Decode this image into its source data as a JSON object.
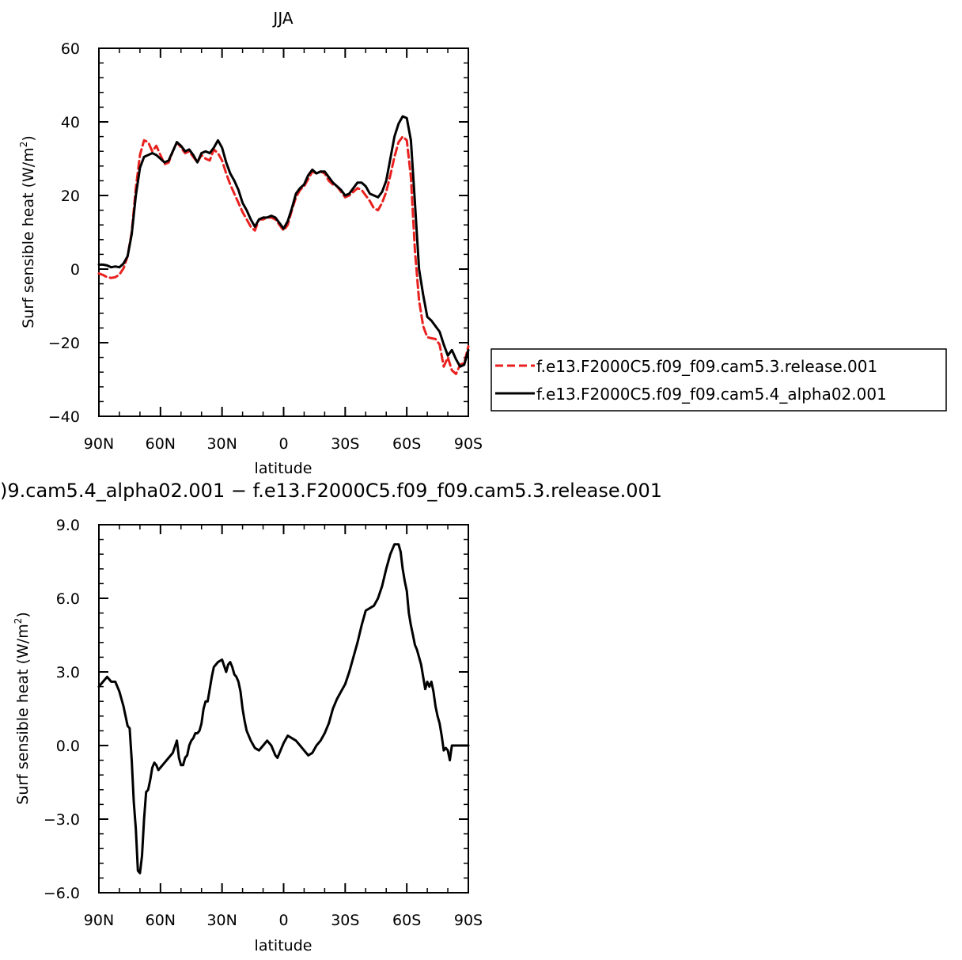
{
  "chart_data": [
    {
      "type": "line",
      "title": "JJA",
      "xlabel": "latitude",
      "ylabel": "Surf sensible heat (W/m",
      "ylabel_sup": "2",
      "ylabel_close": ")",
      "xlim": [
        90,
        -90
      ],
      "ylim": [
        -40,
        60
      ],
      "x_ticks": [
        90,
        60,
        30,
        0,
        -30,
        -60,
        -90
      ],
      "x_tick_labels": [
        "90N",
        "60N",
        "30N",
        "0",
        "30S",
        "60S",
        "90S"
      ],
      "y_ticks": [
        -40,
        -20,
        0,
        20,
        40,
        60
      ],
      "y_tick_labels": [
        "−40",
        "−20",
        "0",
        "20",
        "40",
        "60"
      ],
      "legend": "right",
      "series": [
        {
          "name": "f.e13.F2000C5.f09_f09.cam5.3.release.001",
          "color": "#e8211f",
          "dash": "dashed",
          "x": [
            90,
            88,
            86,
            84,
            82,
            80,
            78,
            76,
            74,
            72,
            70,
            68,
            66,
            64,
            62,
            60,
            58,
            56,
            54,
            52,
            50,
            48,
            46,
            44,
            42,
            40,
            38,
            36,
            34,
            32,
            30,
            28,
            26,
            24,
            22,
            20,
            18,
            16,
            14,
            12,
            10,
            8,
            6,
            4,
            2,
            0,
            -2,
            -4,
            -6,
            -8,
            -10,
            -12,
            -14,
            -16,
            -18,
            -20,
            -22,
            -24,
            -26,
            -28,
            -30,
            -32,
            -34,
            -36,
            -38,
            -40,
            -42,
            -44,
            -46,
            -48,
            -50,
            -52,
            -54,
            -56,
            -58,
            -60,
            -62,
            -64,
            -66,
            -68,
            -70,
            -72,
            -74,
            -76,
            -78,
            -80,
            -82,
            -84,
            -86,
            -88,
            -90
          ],
          "y": [
            -1.2,
            -1.6,
            -2.2,
            -2.4,
            -2.2,
            -1.5,
            0.2,
            3.5,
            10.0,
            22.0,
            31.0,
            35.0,
            34.5,
            32.0,
            33.5,
            31.0,
            28.5,
            29.0,
            32.0,
            34.5,
            33.0,
            31.5,
            32.0,
            30.5,
            29.0,
            31.0,
            30.0,
            29.5,
            32.5,
            31.5,
            29.5,
            26.0,
            23.0,
            20.5,
            18.0,
            15.5,
            13.5,
            11.5,
            10.5,
            13.5,
            13.5,
            14.0,
            14.0,
            13.5,
            12.0,
            10.5,
            12.0,
            16.0,
            19.5,
            21.5,
            22.5,
            24.5,
            26.5,
            26.0,
            26.5,
            26.0,
            24.0,
            23.0,
            22.5,
            21.0,
            19.5,
            20.0,
            21.0,
            22.0,
            21.5,
            20.0,
            18.5,
            16.5,
            16.0,
            18.0,
            21.0,
            25.5,
            30.5,
            34.5,
            36.0,
            35.0,
            25.0,
            5.0,
            -8.5,
            -15.5,
            -18.5,
            -18.8,
            -19.0,
            -20.5,
            -26.5,
            -24.0,
            -27.5,
            -28.5,
            -26.0,
            -25.5,
            -21.0
          ]
        },
        {
          "name": "f.e13.F2000C5.f09_f09.cam5.4_alpha02.001",
          "color": "#000000",
          "dash": "solid",
          "x": [
            90,
            88,
            86,
            84,
            82,
            80,
            78,
            76,
            74,
            72,
            70,
            68,
            66,
            64,
            62,
            60,
            58,
            56,
            54,
            52,
            50,
            48,
            46,
            44,
            42,
            40,
            38,
            36,
            34,
            32,
            30,
            28,
            26,
            24,
            22,
            20,
            18,
            16,
            14,
            12,
            10,
            8,
            6,
            4,
            2,
            0,
            -2,
            -4,
            -6,
            -8,
            -10,
            -12,
            -14,
            -16,
            -18,
            -20,
            -22,
            -24,
            -26,
            -28,
            -30,
            -32,
            -34,
            -36,
            -38,
            -40,
            -42,
            -44,
            -46,
            -48,
            -50,
            -52,
            -54,
            -56,
            -58,
            -60,
            -62,
            -64,
            -66,
            -68,
            -70,
            -72,
            -74,
            -76,
            -78,
            -80,
            -82,
            -84,
            -86,
            -88,
            -90
          ],
          "y": [
            1.2,
            1.2,
            1.0,
            0.5,
            0.7,
            0.5,
            1.5,
            3.5,
            9.5,
            20.0,
            27.5,
            30.5,
            31.0,
            31.5,
            31.0,
            30.0,
            29.0,
            29.5,
            32.0,
            34.5,
            33.5,
            32.0,
            32.5,
            31.0,
            29.0,
            31.5,
            32.0,
            31.5,
            33.0,
            35.0,
            33.0,
            29.0,
            26.0,
            24.0,
            21.5,
            18.0,
            16.0,
            13.5,
            11.5,
            13.5,
            14.0,
            14.0,
            14.5,
            14.0,
            12.5,
            11.0,
            13.0,
            16.5,
            20.5,
            22.0,
            23.0,
            25.5,
            27.0,
            26.0,
            26.5,
            26.5,
            25.0,
            23.5,
            22.5,
            21.5,
            20.0,
            20.5,
            22.0,
            23.5,
            23.5,
            22.5,
            20.5,
            20.0,
            19.5,
            21.0,
            24.0,
            30.0,
            36.0,
            39.5,
            41.5,
            41.0,
            35.0,
            18.0,
            0.0,
            -7.0,
            -13.0,
            -14.0,
            -15.5,
            -17.0,
            -20.5,
            -23.5,
            -22.0,
            -24.5,
            -26.5,
            -26.0,
            -22.0
          ]
        }
      ]
    },
    {
      "type": "line",
      "title": ")9.cam5.4_alpha02.001 − f.e13.F2000C5.f09_f09.cam5.3.release.001",
      "xlabel": "latitude",
      "ylabel": "Surf sensible heat (W/m",
      "ylabel_sup": "2",
      "ylabel_close": ")",
      "xlim": [
        90,
        -90
      ],
      "ylim": [
        -6,
        9
      ],
      "x_ticks": [
        90,
        60,
        30,
        0,
        -30,
        -60,
        -90
      ],
      "x_tick_labels": [
        "90N",
        "60N",
        "30N",
        "0",
        "30S",
        "60S",
        "90S"
      ],
      "y_ticks": [
        -6,
        -3,
        0,
        3,
        6,
        9
      ],
      "y_tick_labels": [
        "−6.0",
        "−3.0",
        "0.0",
        "3.0",
        "6.0",
        "9.0"
      ],
      "series": [
        {
          "color": "#000000",
          "dash": "solid",
          "x": [
            90,
            88,
            86,
            84,
            82,
            80,
            78,
            76,
            75,
            74,
            73,
            72,
            71,
            70,
            69,
            68,
            67,
            66,
            65,
            64,
            63,
            62,
            61,
            60,
            58,
            56,
            54,
            52,
            51,
            50,
            49,
            48,
            47,
            46,
            45,
            44,
            43,
            42,
            41,
            40,
            39,
            38,
            37,
            36,
            35,
            34,
            32,
            30,
            28,
            27,
            26,
            25,
            24,
            23,
            22,
            21,
            20,
            19,
            18,
            16,
            14,
            12,
            10,
            8,
            6,
            4,
            3,
            2,
            0,
            -2,
            -4,
            -6,
            -8,
            -10,
            -12,
            -14,
            -16,
            -18,
            -20,
            -22,
            -24,
            -26,
            -28,
            -30,
            -32,
            -34,
            -36,
            -38,
            -40,
            -42,
            -44,
            -46,
            -48,
            -50,
            -52,
            -54,
            -56,
            -57,
            -58,
            -59,
            -60,
            -61,
            -62,
            -63,
            -64,
            -65,
            -66,
            -67,
            -68,
            -69,
            -70,
            -71,
            -72,
            -73,
            -74,
            -75,
            -76,
            -77,
            -78,
            -79,
            -80,
            -81,
            -82,
            -83,
            -84,
            -85,
            -86,
            -87,
            -88,
            -89,
            -90
          ],
          "y": [
            2.4,
            2.6,
            2.8,
            2.6,
            2.6,
            2.2,
            1.6,
            0.8,
            0.7,
            -0.6,
            -2.3,
            -3.4,
            -5.1,
            -5.2,
            -4.5,
            -3.0,
            -1.9,
            -1.8,
            -1.4,
            -0.9,
            -0.7,
            -0.8,
            -1.0,
            -0.9,
            -0.7,
            -0.5,
            -0.3,
            0.2,
            -0.5,
            -0.8,
            -0.8,
            -0.5,
            -0.4,
            0.0,
            0.2,
            0.3,
            0.5,
            0.5,
            0.6,
            0.9,
            1.5,
            1.8,
            1.8,
            2.3,
            2.8,
            3.2,
            3.4,
            3.5,
            3.0,
            3.3,
            3.4,
            3.2,
            2.9,
            2.8,
            2.6,
            2.2,
            1.5,
            1.0,
            0.6,
            0.2,
            -0.1,
            -0.2,
            0.0,
            0.2,
            0.0,
            -0.4,
            -0.5,
            -0.3,
            0.1,
            0.4,
            0.3,
            0.2,
            0.0,
            -0.2,
            -0.4,
            -0.3,
            0.0,
            0.2,
            0.5,
            0.9,
            1.5,
            1.9,
            2.2,
            2.5,
            3.0,
            3.6,
            4.2,
            4.9,
            5.5,
            5.6,
            5.7,
            6.0,
            6.5,
            7.2,
            7.8,
            8.2,
            8.2,
            7.9,
            7.2,
            6.7,
            6.3,
            5.4,
            4.9,
            4.5,
            4.1,
            3.9,
            3.6,
            3.3,
            2.8,
            2.3,
            2.6,
            2.4,
            2.6,
            2.2,
            1.6,
            1.2,
            0.9,
            0.4,
            -0.2,
            -0.1,
            -0.2,
            -0.6,
            0.0,
            0.0,
            0.0,
            0.0,
            0.0,
            0.0,
            0.0,
            0.0,
            0.0
          ]
        }
      ]
    }
  ]
}
